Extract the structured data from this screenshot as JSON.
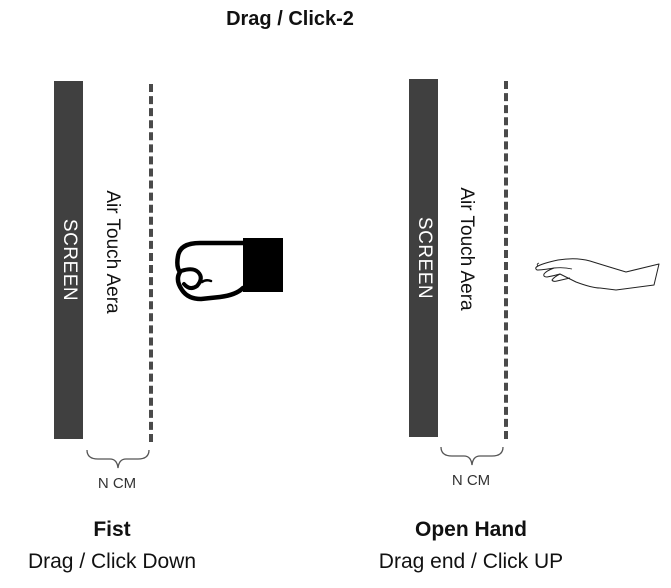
{
  "title": "Drag / Click-2",
  "left_panel": {
    "screen_label": "SCREEN",
    "air_label": "Air Touch Aera",
    "distance_label": "N CM",
    "gesture_icon": "fist-icon",
    "caption_title": "Fist",
    "caption_action": "Drag / Click Down"
  },
  "right_panel": {
    "screen_label": "SCREEN",
    "air_label": "Air Touch Aera",
    "distance_label": "N CM",
    "gesture_icon": "open-hand-icon",
    "caption_title": "Open Hand",
    "caption_action": "Drag end / Click UP"
  },
  "colors": {
    "screen": "#404040",
    "dashed_line": "#4a4a4a",
    "text": "#111111"
  }
}
